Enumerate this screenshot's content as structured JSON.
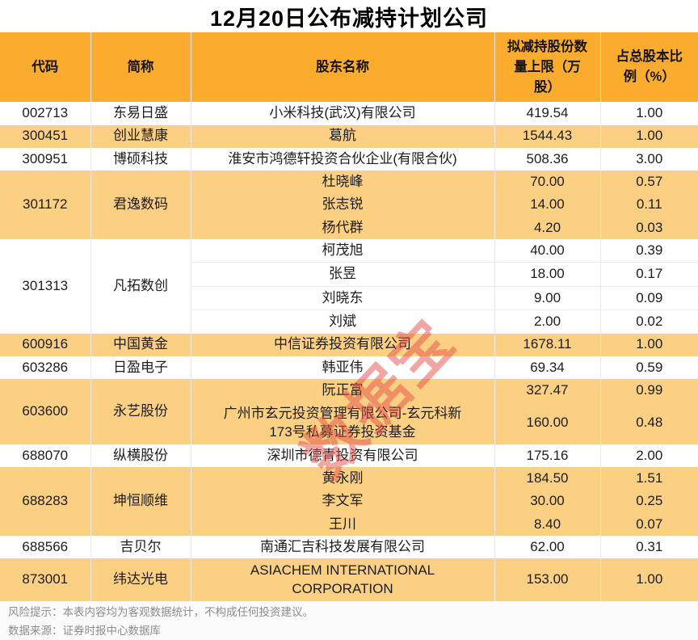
{
  "title": "12月20日公布减持计划公司",
  "watermark": {
    "text": "数据宝"
  },
  "colors": {
    "header_bg": "#fbac2e",
    "row_shade": "#fbd083",
    "border": "#e9e9e9",
    "footer_text": "#8c8c8c",
    "watermark": "#e4504a"
  },
  "footer": {
    "risk": "风险提示：本表内容均为客观数据统计，不构成任何投资建议。",
    "source": "数据来源：证券时报中心数据库"
  },
  "chart_data": {
    "type": "table",
    "title": "12月20日公布减持计划公司",
    "columns": [
      "代码",
      "简称",
      "股东名称",
      "拟减持股份数量上限（万股）",
      "占总股本比例（%）"
    ],
    "column_keys": [
      "code",
      "name",
      "holder",
      "amount",
      "pct"
    ],
    "groups": [
      {
        "code": "002713",
        "name": "东易日盛",
        "shade": false,
        "holders": [
          {
            "holder": "小米科技(武汉)有限公司",
            "amount": "419.54",
            "pct": "1.00"
          }
        ]
      },
      {
        "code": "300451",
        "name": "创业慧康",
        "shade": true,
        "holders": [
          {
            "holder": "葛航",
            "amount": "1544.43",
            "pct": "1.00"
          }
        ]
      },
      {
        "code": "300951",
        "name": "博硕科技",
        "shade": false,
        "holders": [
          {
            "holder": "淮安市鸿德轩投资合伙企业(有限合伙)",
            "amount": "508.36",
            "pct": "3.00"
          }
        ]
      },
      {
        "code": "301172",
        "name": "君逸数码",
        "shade": true,
        "holders": [
          {
            "holder": "杜晓峰",
            "amount": "70.00",
            "pct": "0.57"
          },
          {
            "holder": "张志锐",
            "amount": "14.00",
            "pct": "0.11"
          },
          {
            "holder": "杨代群",
            "amount": "4.20",
            "pct": "0.03"
          }
        ]
      },
      {
        "code": "301313",
        "name": "凡拓数创",
        "shade": false,
        "holders": [
          {
            "holder": "柯茂旭",
            "amount": "40.00",
            "pct": "0.39"
          },
          {
            "holder": "张昱",
            "amount": "18.00",
            "pct": "0.17"
          },
          {
            "holder": "刘晓东",
            "amount": "9.00",
            "pct": "0.09"
          },
          {
            "holder": "刘斌",
            "amount": "2.00",
            "pct": "0.02"
          }
        ]
      },
      {
        "code": "600916",
        "name": "中国黄金",
        "shade": true,
        "holders": [
          {
            "holder": "中信证券投资有限公司",
            "amount": "1678.11",
            "pct": "1.00"
          }
        ]
      },
      {
        "code": "603286",
        "name": "日盈电子",
        "shade": false,
        "holders": [
          {
            "holder": "韩亚伟",
            "amount": "69.34",
            "pct": "0.59"
          }
        ]
      },
      {
        "code": "603600",
        "name": "永艺股份",
        "shade": true,
        "holders": [
          {
            "holder": "阮正富",
            "amount": "327.47",
            "pct": "0.99"
          },
          {
            "holder": "广州市玄元投资管理有限公司-玄元科新173号私募证券投资基金",
            "amount": "160.00",
            "pct": "0.48"
          }
        ]
      },
      {
        "code": "688070",
        "name": "纵横股份",
        "shade": false,
        "holders": [
          {
            "holder": "深圳市德青投资有限公司",
            "amount": "175.16",
            "pct": "2.00"
          }
        ]
      },
      {
        "code": "688283",
        "name": "坤恒顺维",
        "shade": true,
        "holders": [
          {
            "holder": "黄永刚",
            "amount": "184.50",
            "pct": "1.51"
          },
          {
            "holder": "李文军",
            "amount": "30.00",
            "pct": "0.25"
          },
          {
            "holder": "王川",
            "amount": "8.40",
            "pct": "0.07"
          }
        ]
      },
      {
        "code": "688566",
        "name": "吉贝尔",
        "shade": false,
        "holders": [
          {
            "holder": "南通汇吉科技发展有限公司",
            "amount": "62.00",
            "pct": "0.31"
          }
        ]
      },
      {
        "code": "873001",
        "name": "纬达光电",
        "shade": true,
        "holders": [
          {
            "holder": "ASIACHEM INTERNATIONAL CORPORATION",
            "amount": "153.00",
            "pct": "1.00"
          }
        ]
      }
    ]
  }
}
